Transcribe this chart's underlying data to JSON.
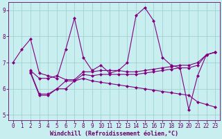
{
  "xlabel": "Windchill (Refroidissement éolien,°C)",
  "bg_color": "#c8eef0",
  "line_color": "#800080",
  "grid_color": "#99cccc",
  "xlim": [
    -0.5,
    23.5
  ],
  "ylim": [
    4.8,
    9.3
  ],
  "yticks": [
    5,
    6,
    7,
    8,
    9
  ],
  "xticks": [
    0,
    1,
    2,
    3,
    4,
    5,
    6,
    7,
    8,
    9,
    10,
    11,
    12,
    13,
    14,
    15,
    16,
    17,
    18,
    19,
    20,
    21,
    22,
    23
  ],
  "series1_x": [
    0,
    1,
    2,
    3,
    4,
    5,
    6,
    7,
    8,
    9,
    10,
    11,
    12,
    13,
    14,
    15,
    16,
    17,
    18,
    19,
    20,
    21,
    22,
    23
  ],
  "series1_y": [
    7.0,
    7.5,
    7.9,
    6.6,
    6.5,
    6.4,
    7.5,
    8.7,
    7.2,
    6.7,
    6.9,
    6.6,
    6.7,
    7.0,
    8.8,
    9.1,
    8.6,
    7.2,
    6.9,
    6.8,
    5.2,
    6.5,
    7.3,
    7.4
  ],
  "series2_x": [
    2,
    3,
    4,
    5,
    6,
    7,
    8,
    9,
    10,
    11,
    12,
    13,
    14,
    15,
    16,
    17,
    18,
    19,
    20,
    21,
    22,
    23
  ],
  "series2_y": [
    6.7,
    6.4,
    6.4,
    6.5,
    6.35,
    6.35,
    6.65,
    6.65,
    6.7,
    6.7,
    6.7,
    6.65,
    6.65,
    6.7,
    6.75,
    6.8,
    6.85,
    6.9,
    6.9,
    7.0,
    7.3,
    7.4
  ],
  "series3_x": [
    2,
    3,
    4,
    5,
    6,
    7,
    8,
    9,
    10,
    11,
    12,
    13,
    14,
    15,
    16,
    17,
    18,
    19,
    20,
    21,
    22,
    23
  ],
  "series3_y": [
    6.65,
    5.8,
    5.8,
    6.0,
    6.0,
    6.3,
    6.55,
    6.5,
    6.55,
    6.55,
    6.55,
    6.55,
    6.55,
    6.6,
    6.65,
    6.7,
    6.75,
    6.8,
    6.8,
    6.9,
    7.3,
    7.4
  ],
  "series4_x": [
    2,
    3,
    4,
    5,
    6,
    7,
    8,
    9,
    10,
    11,
    12,
    13,
    14,
    15,
    16,
    17,
    18,
    19,
    20,
    21,
    22,
    23
  ],
  "series4_y": [
    6.6,
    5.75,
    5.75,
    6.0,
    6.3,
    6.3,
    6.4,
    6.3,
    6.25,
    6.2,
    6.15,
    6.1,
    6.05,
    6.0,
    5.95,
    5.9,
    5.85,
    5.8,
    5.75,
    5.5,
    5.4,
    5.3
  ],
  "marker": "D",
  "markersize": 2,
  "linewidth": 0.8,
  "tick_fontsize": 5.5,
  "label_fontsize": 6.0
}
